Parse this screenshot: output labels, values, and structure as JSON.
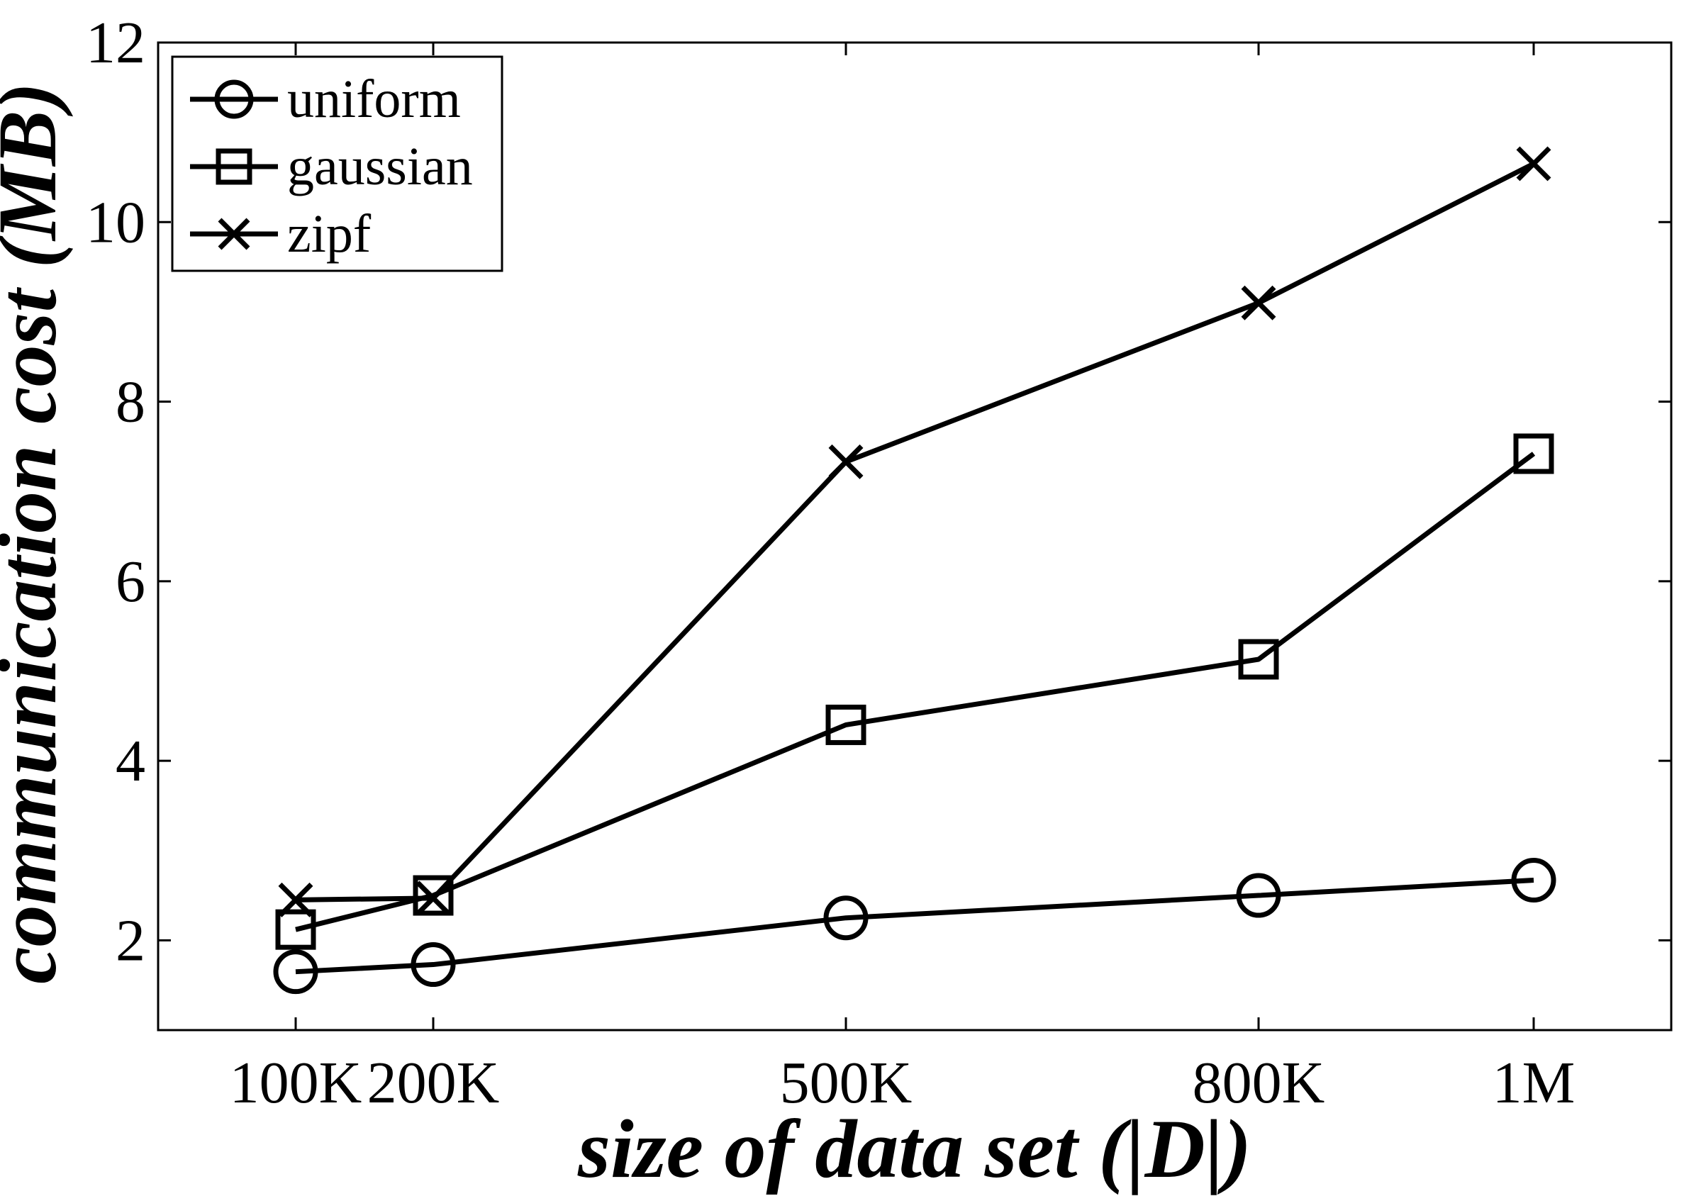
{
  "chart_data": {
    "type": "line",
    "title": "",
    "xlabel": "size of data set (|D|)",
    "ylabel": "communication cost (MB)",
    "categories": [
      "100K",
      "200K",
      "500K",
      "800K",
      "1M"
    ],
    "x": [
      100000,
      200000,
      500000,
      800000,
      1000000
    ],
    "xlim": [
      0,
      1100000
    ],
    "ylim": [
      1,
      12
    ],
    "yticks": [
      2,
      4,
      6,
      8,
      10,
      12
    ],
    "grid": false,
    "legend_position": "top-left",
    "series": [
      {
        "name": "uniform",
        "marker": "circle",
        "values": [
          1.65,
          1.73,
          2.25,
          2.5,
          2.67
        ]
      },
      {
        "name": "gaussian",
        "marker": "square",
        "values": [
          2.12,
          2.5,
          4.4,
          5.13,
          7.42
        ]
      },
      {
        "name": "zipf",
        "marker": "x",
        "values": [
          2.45,
          2.47,
          7.33,
          9.1,
          10.65
        ]
      }
    ],
    "colors": {
      "line": "#000000",
      "background": "#ffffff"
    }
  }
}
